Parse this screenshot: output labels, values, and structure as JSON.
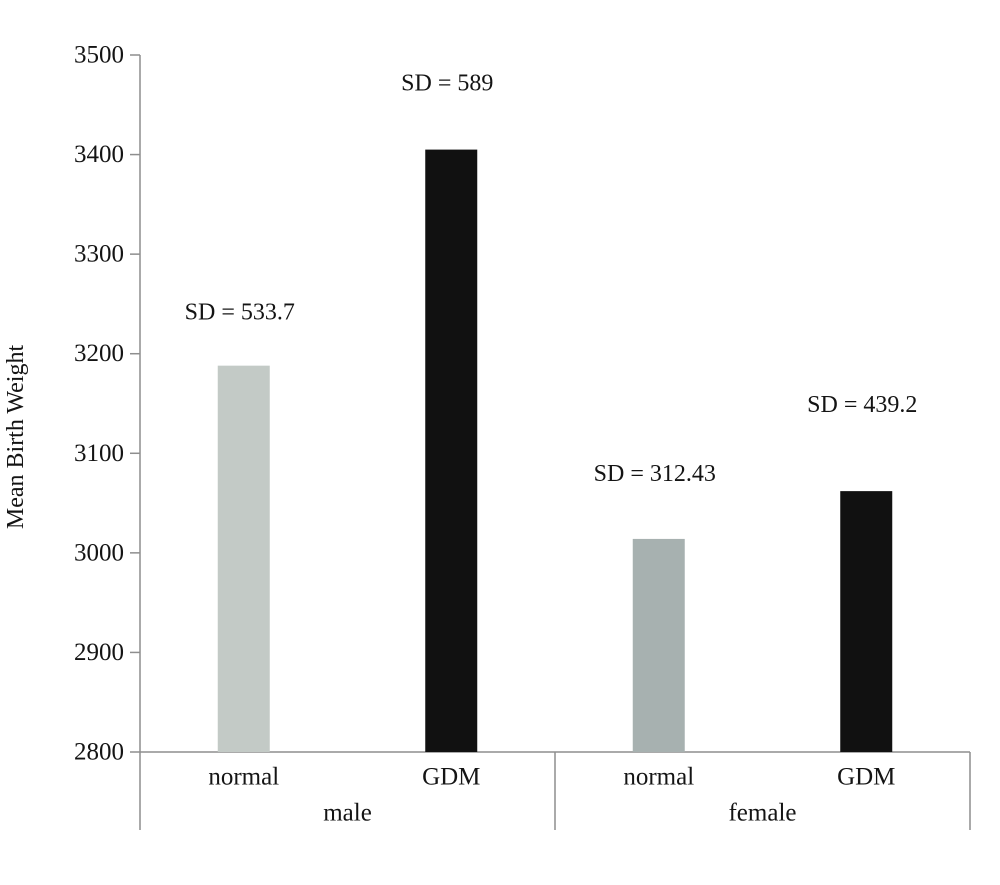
{
  "chart_data": {
    "type": "bar",
    "ylabel": "Mean Birth Weight",
    "xlabel": "",
    "ylim": [
      2800,
      3500
    ],
    "yticks": [
      2800,
      2900,
      3000,
      3100,
      3200,
      3300,
      3400,
      3500
    ],
    "grid": false,
    "legend": "none",
    "groups": [
      {
        "label": "male",
        "bars": [
          {
            "category": "normal",
            "value": 3188,
            "annotation": "SD = 533.7",
            "color": "#c3cac6"
          },
          {
            "category": "GDM",
            "value": 3405,
            "annotation": "SD = 589",
            "color": "#111111"
          }
        ]
      },
      {
        "label": "female",
        "bars": [
          {
            "category": "normal",
            "value": 3014,
            "annotation": "SD = 312.43",
            "color": "#a7b1b0"
          },
          {
            "category": "GDM",
            "value": 3062,
            "annotation": "SD = 439.2",
            "color": "#111111"
          }
        ]
      }
    ]
  }
}
